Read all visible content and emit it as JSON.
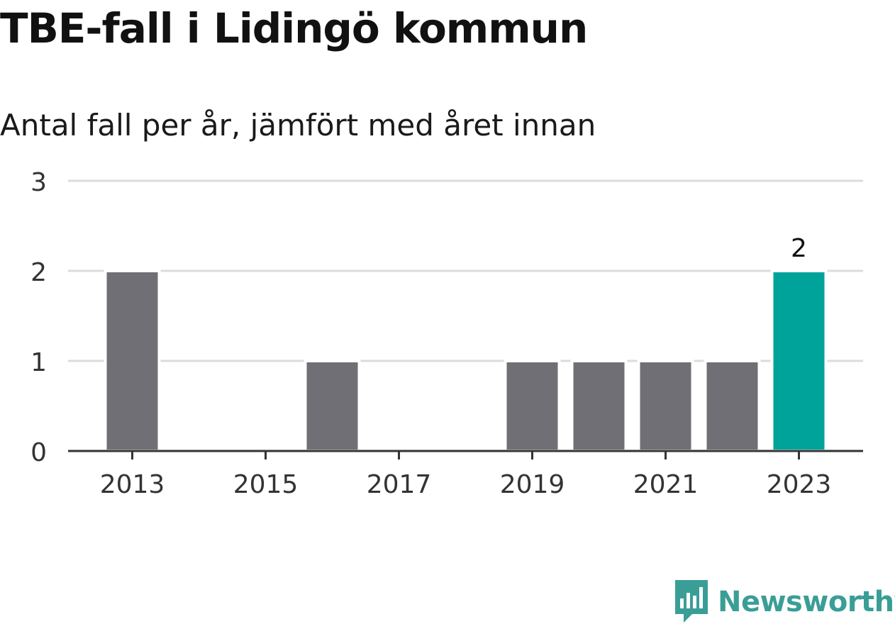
{
  "title": "TBE-fall i Lidingö kommun",
  "subtitle": "Antal fall per år, jämfört med året innan",
  "brand": {
    "name": "Newsworthy",
    "color": "#3a9e97"
  },
  "colors": {
    "bar": "#706f75",
    "highlight": "#00a39a",
    "grid": "#dcdcdc",
    "axis": "#333333"
  },
  "chart_data": {
    "type": "bar",
    "categories": [
      "2013",
      "2014",
      "2015",
      "2016",
      "2017",
      "2018",
      "2019",
      "2020",
      "2021",
      "2022",
      "2023"
    ],
    "values": [
      2,
      0,
      0,
      1,
      0,
      0,
      1,
      1,
      1,
      1,
      2
    ],
    "highlight_index": 10,
    "data_labels": [
      {
        "category": "2023",
        "text": "2"
      }
    ],
    "x_tick_labels": [
      "2013",
      "2015",
      "2017",
      "2019",
      "2021",
      "2023"
    ],
    "y_ticks": [
      0,
      1,
      2,
      3
    ],
    "ylim": [
      0,
      3
    ],
    "grid": true,
    "legend": "none",
    "xlabel": "",
    "ylabel": ""
  }
}
